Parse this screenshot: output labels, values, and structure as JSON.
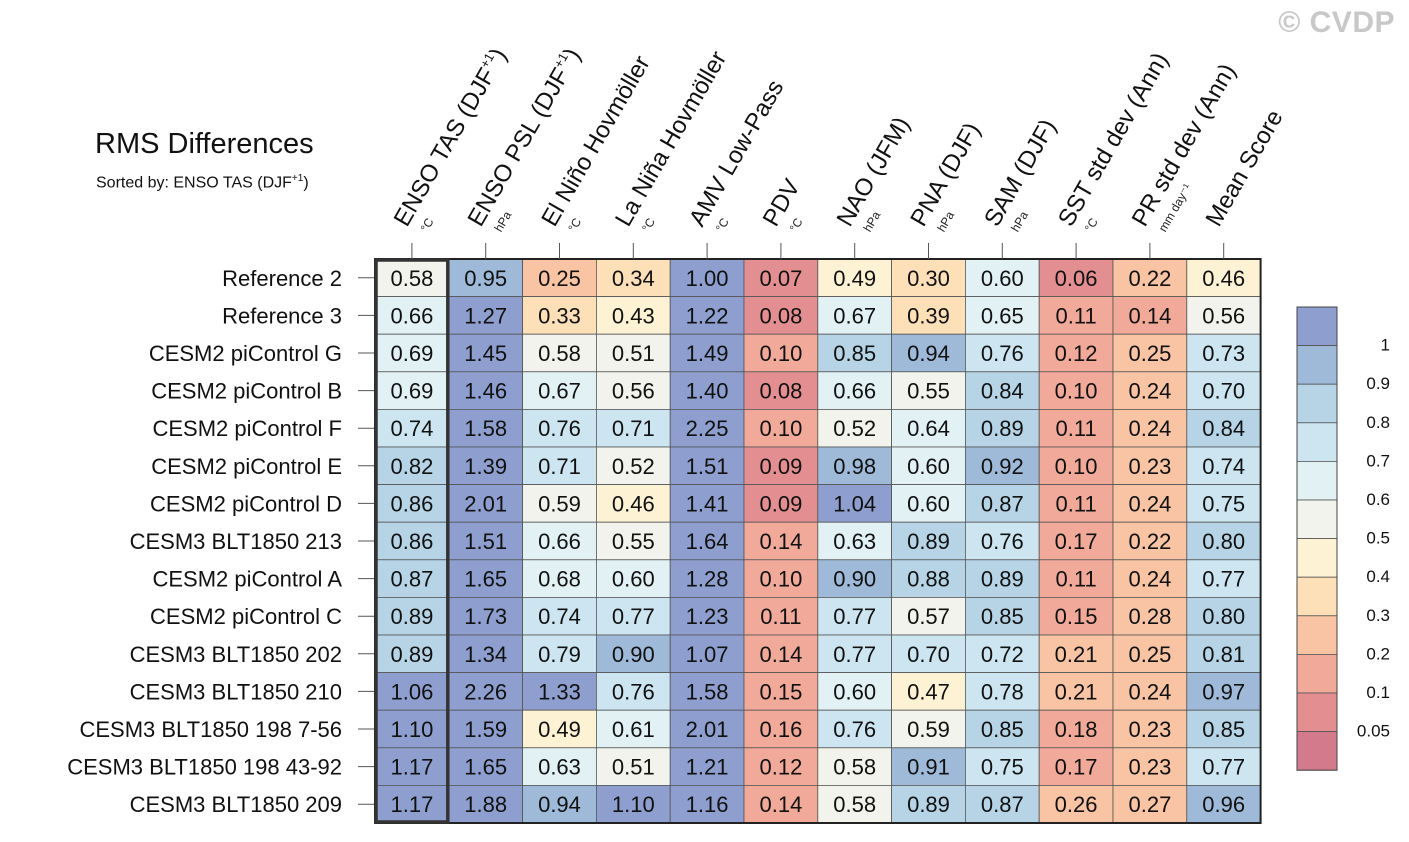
{
  "watermark": "© CVDP",
  "title": "RMS Differences",
  "subtitle": "Sorted by: ENSO TAS (DJF",
  "subtitle_sup": "+1",
  "subtitle_end": ")",
  "chart_data": {
    "type": "heatmap",
    "highlighted_column": "ENSO TAS (DJF+1)",
    "columns": [
      {
        "label": "ENSO TAS (DJF",
        "sup": "+1",
        "tail": ")",
        "unit": "°C"
      },
      {
        "label": "ENSO PSL (DJF",
        "sup": "+1",
        "tail": ")",
        "unit": "hPa"
      },
      {
        "label": "El Niño Hovmöller",
        "sup": "",
        "tail": "",
        "unit": "°C"
      },
      {
        "label": "La Niña Hovmöller",
        "sup": "",
        "tail": "",
        "unit": "°C"
      },
      {
        "label": "AMV Low-Pass",
        "sup": "",
        "tail": "",
        "unit": "°C"
      },
      {
        "label": "PDV",
        "sup": "",
        "tail": "",
        "unit": "°C"
      },
      {
        "label": "NAO (JFM)",
        "sup": "",
        "tail": "",
        "unit": "hPa"
      },
      {
        "label": "PNA (DJF)",
        "sup": "",
        "tail": "",
        "unit": "hPa"
      },
      {
        "label": "SAM (DJF)",
        "sup": "",
        "tail": "",
        "unit": "hPa"
      },
      {
        "label": "SST std dev (Ann)",
        "sup": "",
        "tail": "",
        "unit": "°C"
      },
      {
        "label": "PR std dev (Ann)",
        "sup": "",
        "tail": "",
        "unit": "mm day⁻¹"
      },
      {
        "label": "Mean Score",
        "sup": "",
        "tail": "",
        "unit": ""
      }
    ],
    "rows": [
      {
        "name": "Reference 2",
        "values": [
          "0.58",
          "0.95",
          "0.25",
          "0.34",
          "1.00",
          "0.07",
          "0.49",
          "0.30",
          "0.60",
          "0.06",
          "0.22",
          "0.46"
        ]
      },
      {
        "name": "Reference 3",
        "values": [
          "0.66",
          "1.27",
          "0.33",
          "0.43",
          "1.22",
          "0.08",
          "0.67",
          "0.39",
          "0.65",
          "0.11",
          "0.14",
          "0.56"
        ]
      },
      {
        "name": "CESM2 piControl G",
        "values": [
          "0.69",
          "1.45",
          "0.58",
          "0.51",
          "1.49",
          "0.10",
          "0.85",
          "0.94",
          "0.76",
          "0.12",
          "0.25",
          "0.73"
        ]
      },
      {
        "name": "CESM2 piControl B",
        "values": [
          "0.69",
          "1.46",
          "0.67",
          "0.56",
          "1.40",
          "0.08",
          "0.66",
          "0.55",
          "0.84",
          "0.10",
          "0.24",
          "0.70"
        ]
      },
      {
        "name": "CESM2 piControl F",
        "values": [
          "0.74",
          "1.58",
          "0.76",
          "0.71",
          "2.25",
          "0.10",
          "0.52",
          "0.64",
          "0.89",
          "0.11",
          "0.24",
          "0.84"
        ]
      },
      {
        "name": "CESM2 piControl E",
        "values": [
          "0.82",
          "1.39",
          "0.71",
          "0.52",
          "1.51",
          "0.09",
          "0.98",
          "0.60",
          "0.92",
          "0.10",
          "0.23",
          "0.74"
        ]
      },
      {
        "name": "CESM2 piControl D",
        "values": [
          "0.86",
          "2.01",
          "0.59",
          "0.46",
          "1.41",
          "0.09",
          "1.04",
          "0.60",
          "0.87",
          "0.11",
          "0.24",
          "0.75"
        ]
      },
      {
        "name": "CESM3 BLT1850 213",
        "values": [
          "0.86",
          "1.51",
          "0.66",
          "0.55",
          "1.64",
          "0.14",
          "0.63",
          "0.89",
          "0.76",
          "0.17",
          "0.22",
          "0.80"
        ]
      },
      {
        "name": "CESM2 piControl A",
        "values": [
          "0.87",
          "1.65",
          "0.68",
          "0.60",
          "1.28",
          "0.10",
          "0.90",
          "0.88",
          "0.89",
          "0.11",
          "0.24",
          "0.77"
        ]
      },
      {
        "name": "CESM2 piControl C",
        "values": [
          "0.89",
          "1.73",
          "0.74",
          "0.77",
          "1.23",
          "0.11",
          "0.77",
          "0.57",
          "0.85",
          "0.15",
          "0.28",
          "0.80"
        ]
      },
      {
        "name": "CESM3 BLT1850 202",
        "values": [
          "0.89",
          "1.34",
          "0.79",
          "0.90",
          "1.07",
          "0.14",
          "0.77",
          "0.70",
          "0.72",
          "0.21",
          "0.25",
          "0.81"
        ]
      },
      {
        "name": "CESM3 BLT1850 210",
        "values": [
          "1.06",
          "2.26",
          "1.33",
          "0.76",
          "1.58",
          "0.15",
          "0.60",
          "0.47",
          "0.78",
          "0.21",
          "0.24",
          "0.97"
        ]
      },
      {
        "name": "CESM3 BLT1850 198 7-56",
        "values": [
          "1.10",
          "1.59",
          "0.49",
          "0.61",
          "2.01",
          "0.16",
          "0.76",
          "0.59",
          "0.85",
          "0.18",
          "0.23",
          "0.85"
        ]
      },
      {
        "name": "CESM3 BLT1850 198 43-92",
        "values": [
          "1.17",
          "1.65",
          "0.63",
          "0.51",
          "1.21",
          "0.12",
          "0.58",
          "0.91",
          "0.75",
          "0.17",
          "0.23",
          "0.77"
        ]
      },
      {
        "name": "CESM3 BLT1850 209",
        "values": [
          "1.17",
          "1.88",
          "0.94",
          "1.10",
          "1.16",
          "0.14",
          "0.58",
          "0.89",
          "0.87",
          "0.26",
          "0.27",
          "0.96"
        ]
      }
    ],
    "colorbar": {
      "levels": [
        0.05,
        0.1,
        0.2,
        0.3,
        0.4,
        0.5,
        0.6,
        0.7,
        0.8,
        0.9,
        1
      ],
      "tick_labels": [
        "0.05",
        "0.1",
        "0.2",
        "0.3",
        "0.4",
        "0.5",
        "0.6",
        "0.7",
        "0.8",
        "0.9",
        "1"
      ],
      "colors": [
        "#d37b8c",
        "#e38f92",
        "#f1aa99",
        "#f8c4a4",
        "#fde0b8",
        "#fdf2d3",
        "#f1f3ec",
        "#e2f1f4",
        "#cce5f0",
        "#b6d4e6",
        "#9fbad9",
        "#8e9fcf"
      ]
    }
  }
}
